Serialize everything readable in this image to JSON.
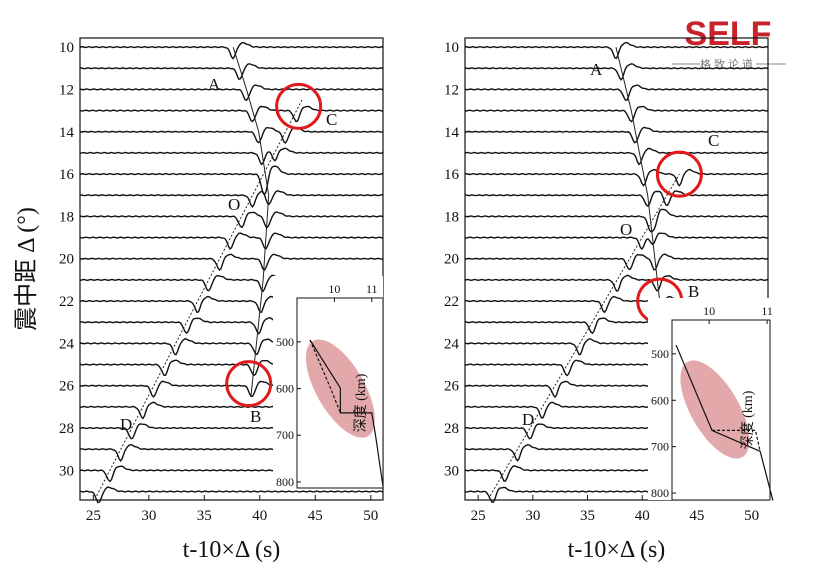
{
  "logo": {
    "brand": "SELF",
    "tagline": "格致论道"
  },
  "chart_data": [
    {
      "type": "record-section",
      "ylabel": "震中距 Δ (°)",
      "xlabel": "t-10×Δ (s)",
      "xlim": [
        23.8,
        51.1
      ],
      "ylim": [
        9.57,
        31.4
      ],
      "xticks": [
        25,
        30,
        35,
        40,
        45,
        50
      ],
      "yticks": [
        10,
        12,
        14,
        16,
        18,
        20,
        22,
        24,
        26,
        28,
        30
      ],
      "trace_distances": [
        10,
        11,
        12,
        13,
        14,
        15,
        16,
        17,
        18,
        19,
        20,
        21,
        22,
        23,
        24,
        25,
        26,
        27,
        28,
        29,
        30,
        31
      ],
      "series": [
        {
          "x": [
            37.6,
            38.8,
            39.9,
            40.8,
            40.3,
            39.2
          ],
          "y": [
            10,
            12,
            14,
            17,
            21,
            26.5
          ]
        },
        {
          "x": [
            25.3,
            43.8
          ],
          "y": [
            31.2,
            12.5
          ]
        }
      ],
      "labels": [
        "A",
        "O",
        "C",
        "B",
        "D"
      ],
      "highlights": [
        {
          "x": 43.5,
          "y": 12.8
        },
        {
          "x": 39.0,
          "y": 25.9
        }
      ],
      "inset": {
        "type": "line",
        "ylabel": "深度 (km)",
        "xlim": [
          9.0,
          11.3
        ],
        "ylim": [
          406,
          813
        ],
        "xticks": [
          10,
          11
        ],
        "yticks": [
          500,
          600,
          700,
          800
        ],
        "ellipse": {
          "x": 10.16,
          "y": 600
        },
        "series": [
          {
            "style": "solid",
            "x": [
              9.35,
              10.16,
              10.16,
              11.0,
              11.1,
              11.3
            ],
            "y": [
              496,
              599,
              652,
              652,
              700,
              810
            ]
          },
          {
            "style": "dashed",
            "x": [
              9.35,
              9.9,
              10.16
            ],
            "y": [
              496,
              600,
              652
            ]
          }
        ]
      }
    },
    {
      "type": "record-section",
      "xlabel": "t-10×Δ (s)",
      "xlim": [
        23.8,
        51.5
      ],
      "ylim": [
        9.57,
        31.4
      ],
      "xticks": [
        25,
        30,
        35,
        40,
        45,
        50
      ],
      "yticks": [
        10,
        12,
        14,
        16,
        18,
        20,
        22,
        24,
        26,
        28,
        30
      ],
      "trace_distances": [
        10,
        11,
        12,
        13,
        14,
        15,
        16,
        17,
        18,
        19,
        20,
        21,
        22,
        23,
        24,
        25,
        26,
        27,
        28,
        29,
        30,
        31
      ],
      "series": [
        {
          "x": [
            37.6,
            39.0,
            40.5,
            41.6
          ],
          "y": [
            10,
            13,
            17,
            22
          ]
        },
        {
          "x": [
            26.1,
            43.4
          ],
          "y": [
            31.2,
            16
          ]
        }
      ],
      "labels": [
        "A",
        "O",
        "C",
        "B",
        "D"
      ],
      "highlights": [
        {
          "x": 43.4,
          "y": 16
        },
        {
          "x": 41.6,
          "y": 22.0
        }
      ],
      "inset": {
        "type": "line",
        "ylabel": "深度 (km)",
        "xlim": [
          9.36,
          11.05
        ],
        "ylim": [
          427,
          815
        ],
        "xticks": [
          10,
          11
        ],
        "yticks": [
          500,
          600,
          700,
          800
        ],
        "ellipse": {
          "x": 10.1,
          "y": 620
        },
        "series": [
          {
            "style": "solid",
            "x": [
              9.43,
              10.05,
              10.88,
              11.1
            ],
            "y": [
              481,
              665,
              710,
              816
            ]
          },
          {
            "style": "dashed",
            "x": [
              10.05,
              10.8,
              10.88
            ],
            "y": [
              665,
              665,
              710
            ]
          }
        ]
      }
    }
  ]
}
